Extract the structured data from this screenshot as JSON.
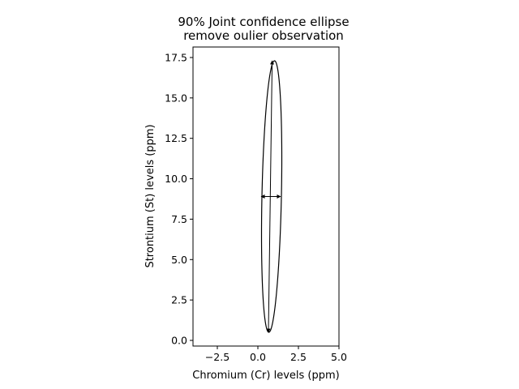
{
  "chart_data": {
    "type": "scatter",
    "title_lines": [
      "90% Joint confidence ellipse",
      "remove oulier observation"
    ],
    "xlabel": "Chromium (Cr) levels (ppm)",
    "ylabel": "Strontium (St) levels (ppm)",
    "xlim": [
      -4.0,
      5.0
    ],
    "ylim": [
      -0.35,
      18.15
    ],
    "xticks": [
      -2.5,
      0.0,
      2.5,
      5.0
    ],
    "xtick_labels": [
      "−2.5",
      "0.0",
      "2.5",
      "5.0"
    ],
    "yticks": [
      0.0,
      2.5,
      5.0,
      7.5,
      10.0,
      12.5,
      15.0,
      17.5
    ],
    "ytick_labels": [
      "0.0",
      "2.5",
      "5.0",
      "7.5",
      "10.0",
      "12.5",
      "15.0",
      "17.5"
    ],
    "grid": false,
    "ellipse": {
      "center": [
        0.85,
        8.9
      ],
      "semi_axis_major": 8.4,
      "semi_axis_minor": 0.6,
      "rotation_deg_from_vertical": -1.2
    },
    "major_axis_segment": {
      "from": [
        0.65,
        0.5
      ],
      "to": [
        0.88,
        17.3
      ]
    },
    "minor_axis_segment": {
      "from": [
        0.2,
        8.9
      ],
      "to": [
        1.4,
        8.9
      ]
    },
    "colors": {
      "line": "#000000",
      "axes": "#000000",
      "background": "#ffffff"
    }
  }
}
